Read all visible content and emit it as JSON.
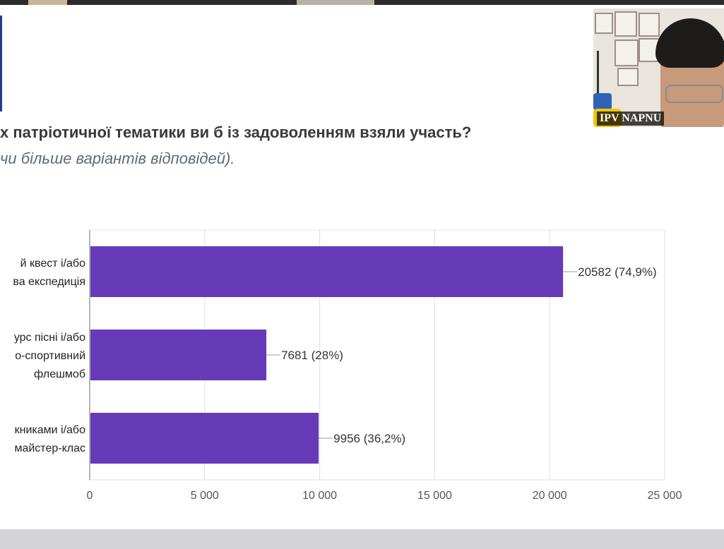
{
  "slide": {
    "question": "х патріотичної тематики ви б із задоволенням взяли участь?",
    "hint": "чи більше варіантів відповідей)."
  },
  "webcam": {
    "participant_name": "IPV NAPNU"
  },
  "colors": {
    "bar": "#673ab7",
    "grid": "#e0e0e0",
    "axis": "#9e9e9e"
  },
  "chart_data": {
    "type": "bar",
    "orientation": "horizontal",
    "categories": [
      [
        "й квест і/або",
        "ва експедиція"
      ],
      [
        "урс пісні і/або",
        "о-спортивний",
        "флешмоб"
      ],
      [
        "книками і/або",
        "майстер-клас"
      ]
    ],
    "values": [
      20582,
      7681,
      9956
    ],
    "data_labels": [
      "20582 (74,9%)",
      "7681 (28%)",
      "9956 (36,2%)"
    ],
    "xlim": [
      0,
      25000
    ],
    "xticks": [
      0,
      5000,
      10000,
      15000,
      20000,
      25000
    ],
    "xtick_labels": [
      "0",
      "5 000",
      "10 000",
      "15 000",
      "20 000",
      "25 000"
    ],
    "grid": true,
    "legend": "none"
  }
}
